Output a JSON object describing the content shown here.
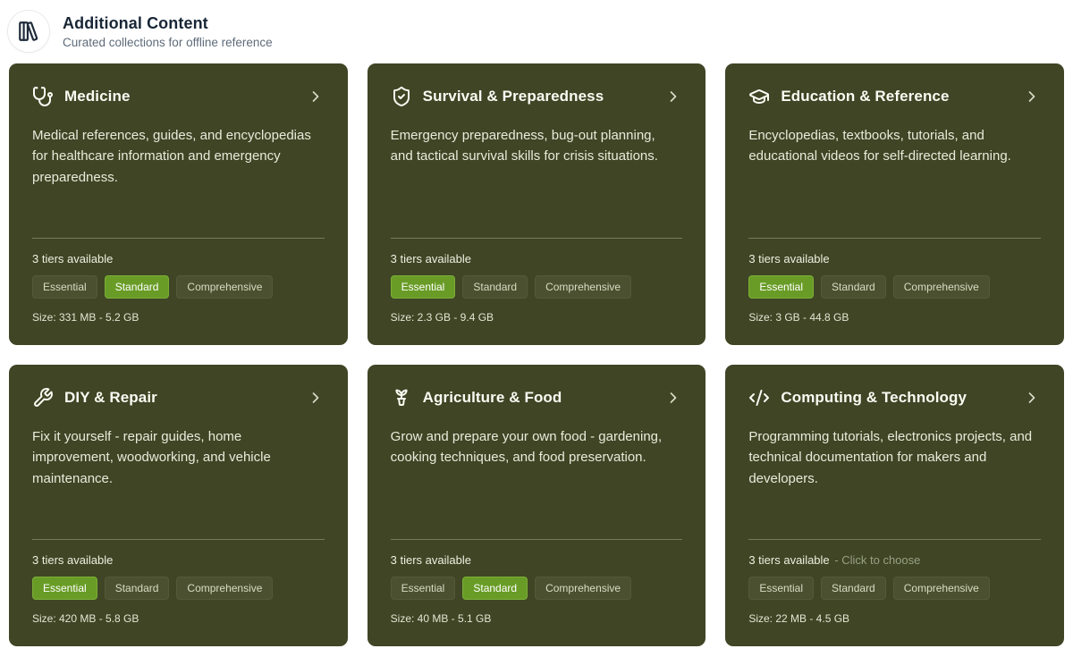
{
  "header": {
    "title": "Additional Content",
    "subtitle": "Curated collections for offline reference",
    "icon": "library-icon"
  },
  "colors": {
    "card_background": "#3f4525",
    "selected_tier_background": "#699c26",
    "tier_badge_background": "#4b5130",
    "header_title_color": "#182636",
    "choose_hint_color": "#99a185"
  },
  "cards": [
    {
      "title": "Medicine",
      "icon": "stethoscope-icon",
      "description": "Medical references, guides, and encyclopedias for healthcare information and emergency preparedness.",
      "tiers_label": "3 tiers available",
      "choose_hint": null,
      "tiers": [
        "Essential",
        "Standard",
        "Comprehensive"
      ],
      "selected_tier": "Standard",
      "size": "Size: 331 MB - 5.2 GB"
    },
    {
      "title": "Survival & Preparedness",
      "icon": "shield-check-icon",
      "description": "Emergency preparedness, bug-out planning, and tactical survival skills for crisis situations.",
      "tiers_label": "3 tiers available",
      "choose_hint": null,
      "tiers": [
        "Essential",
        "Standard",
        "Comprehensive"
      ],
      "selected_tier": "Essential",
      "size": "Size: 2.3 GB - 9.4 GB"
    },
    {
      "title": "Education & Reference",
      "icon": "graduation-cap-icon",
      "description": "Encyclopedias, textbooks, tutorials, and educational videos for self-directed learning.",
      "tiers_label": "3 tiers available",
      "choose_hint": null,
      "tiers": [
        "Essential",
        "Standard",
        "Comprehensive"
      ],
      "selected_tier": "Essential",
      "size": "Size: 3 GB - 44.8 GB"
    },
    {
      "title": "DIY & Repair",
      "icon": "wrench-icon",
      "description": "Fix it yourself - repair guides, home improvement, woodworking, and vehicle maintenance.",
      "tiers_label": "3 tiers available",
      "choose_hint": null,
      "tiers": [
        "Essential",
        "Standard",
        "Comprehensive"
      ],
      "selected_tier": "Essential",
      "size": "Size: 420 MB - 5.8 GB"
    },
    {
      "title": "Agriculture & Food",
      "icon": "seedling-icon",
      "description": "Grow and prepare your own food - gardening, cooking techniques, and food preservation.",
      "tiers_label": "3 tiers available",
      "choose_hint": null,
      "tiers": [
        "Essential",
        "Standard",
        "Comprehensive"
      ],
      "selected_tier": "Standard",
      "size": "Size: 40 MB - 5.1 GB"
    },
    {
      "title": "Computing & Technology",
      "icon": "code-icon",
      "description": "Programming tutorials, electronics projects, and technical documentation for makers and developers.",
      "tiers_label": "3 tiers available",
      "choose_hint": "- Click to choose",
      "tiers": [
        "Essential",
        "Standard",
        "Comprehensive"
      ],
      "selected_tier": null,
      "size": "Size: 22 MB - 4.5 GB"
    }
  ]
}
